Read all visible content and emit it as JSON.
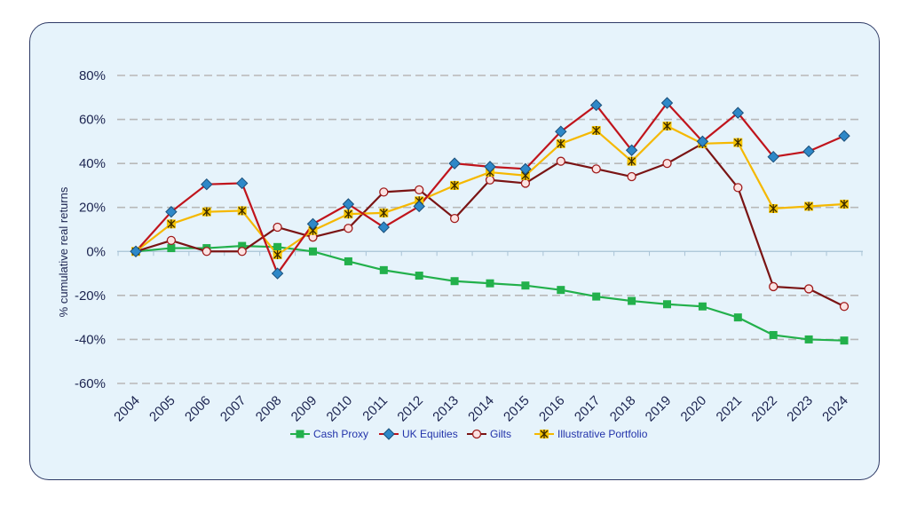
{
  "chart_data": {
    "type": "line",
    "title": "",
    "xlabel": "",
    "ylabel": "% cumulative real returns",
    "ylim": [
      -60,
      80
    ],
    "yticks": [
      -60,
      -40,
      -20,
      0,
      20,
      40,
      60,
      80
    ],
    "ytick_labels": [
      "-60%",
      "-40%",
      "-20%",
      "0%",
      "20%",
      "40%",
      "60%",
      "80%"
    ],
    "categories": [
      "2004",
      "2005",
      "2006",
      "2007",
      "2008",
      "2009",
      "2010",
      "2011",
      "2012",
      "2013",
      "2014",
      "2015",
      "2016",
      "2017",
      "2018",
      "2019",
      "2020",
      "2021",
      "2022",
      "2023",
      "2024"
    ],
    "grid": "horizontal dashed",
    "legend_position": "bottom",
    "series": [
      {
        "name": "Cash Proxy",
        "color": "#22b04b",
        "marker": "square",
        "values": [
          0,
          1.5,
          1.5,
          2.5,
          2,
          0,
          -4.5,
          -8.5,
          -11,
          -13.5,
          -14.5,
          -15.5,
          -17.5,
          -20.5,
          -22.5,
          -24,
          -25,
          -30,
          -38,
          -40,
          -40.5
        ]
      },
      {
        "name": "UK Equities",
        "color": "#c0141c",
        "marker": "diamond",
        "values": [
          0,
          18,
          30.5,
          31,
          -10,
          12.5,
          21.5,
          11,
          20.5,
          40,
          38.5,
          37.5,
          54.5,
          66.5,
          46,
          67.5,
          50,
          63,
          43,
          45.5,
          52.5
        ]
      },
      {
        "name": "Gilts",
        "color": "#7a1414",
        "marker": "circle",
        "values": [
          0,
          5,
          0,
          0,
          11,
          6.5,
          10.5,
          27,
          28,
          15,
          32.5,
          31,
          41,
          37.5,
          34,
          40,
          49,
          29,
          -16,
          -17,
          -25
        ]
      },
      {
        "name": "Illustrative Portfolio",
        "color": "#f5b800",
        "marker": "star",
        "values": [
          0,
          12.5,
          18,
          18.5,
          -1.5,
          9.5,
          17,
          17.5,
          23,
          30,
          36,
          34.5,
          49,
          55,
          41,
          57,
          49,
          49.5,
          19.5,
          20.5,
          21.5
        ]
      }
    ]
  }
}
